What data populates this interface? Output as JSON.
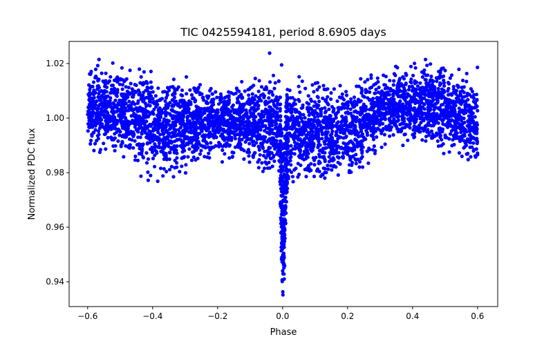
{
  "chart_data": {
    "type": "scatter",
    "title": "TIC 0425594181, period 8.6905 days",
    "xlabel": "Phase",
    "ylabel": "Normalized PDC flux",
    "xlim": [
      -0.657,
      0.662
    ],
    "ylim": [
      0.9309,
      1.0281
    ],
    "xticks": [
      -0.6,
      -0.4,
      -0.2,
      0.0,
      0.2,
      0.4,
      0.6
    ],
    "xtick_labels": [
      "−0.6",
      "−0.4",
      "−0.2",
      "0.0",
      "0.2",
      "0.4",
      "0.6"
    ],
    "yticks": [
      0.94,
      0.96,
      0.98,
      1.0,
      1.02
    ],
    "ytick_labels": [
      "0.94",
      "0.96",
      "0.98",
      "1.00",
      "1.02"
    ],
    "grid": false,
    "marker_color": "#0000ff",
    "series": [
      {
        "name": "PDC flux",
        "note_envelope": "binned flux envelope per phase: [phase, min_flux, max_flux]",
        "envelope": [
          [
            -0.6,
            0.988,
            1.018
          ],
          [
            -0.55,
            0.987,
            1.02
          ],
          [
            -0.5,
            0.985,
            1.019
          ],
          [
            -0.45,
            0.98,
            1.018
          ],
          [
            -0.4,
            0.978,
            1.018
          ],
          [
            -0.35,
            0.978,
            1.016
          ],
          [
            -0.3,
            0.98,
            1.014
          ],
          [
            -0.25,
            0.982,
            1.013
          ],
          [
            -0.2,
            0.985,
            1.012
          ],
          [
            -0.15,
            0.986,
            1.011
          ],
          [
            -0.1,
            0.983,
            1.014
          ],
          [
            -0.05,
            0.98,
            1.016
          ],
          [
            -0.015,
            0.98,
            1.016
          ],
          [
            -0.008,
            0.972,
            1.01
          ],
          [
            -0.004,
            0.95,
            1.0
          ],
          [
            0.0,
            0.935,
            0.99
          ],
          [
            0.005,
            0.94,
            0.995
          ],
          [
            0.01,
            0.962,
            1.005
          ],
          [
            0.016,
            0.975,
            1.012
          ],
          [
            0.03,
            0.978,
            1.015
          ],
          [
            0.05,
            0.978,
            1.014
          ],
          [
            0.1,
            0.977,
            1.013
          ],
          [
            0.15,
            0.976,
            1.013
          ],
          [
            0.2,
            0.978,
            1.014
          ],
          [
            0.25,
            0.982,
            1.015
          ],
          [
            0.3,
            0.988,
            1.017
          ],
          [
            0.35,
            0.99,
            1.018
          ],
          [
            0.4,
            0.99,
            1.019
          ],
          [
            0.45,
            0.99,
            1.02
          ],
          [
            0.5,
            0.987,
            1.019
          ],
          [
            0.55,
            0.982,
            1.018
          ],
          [
            0.6,
            0.98,
            1.018
          ]
        ],
        "outliers": [
          [
            -0.565,
            1.0215
          ],
          [
            -0.04,
            1.0238
          ],
          [
            -0.003,
            1.0195
          ],
          [
            0.44,
            1.0215
          ],
          [
            0.001,
            0.9352
          ]
        ]
      }
    ]
  }
}
